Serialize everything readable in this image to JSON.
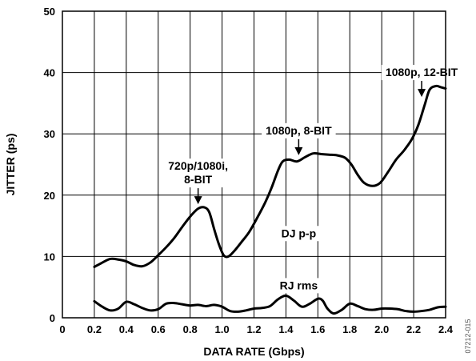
{
  "chart_data": {
    "type": "line",
    "title": "",
    "xlabel": "DATA RATE (Gbps)",
    "ylabel": "JITTER (ps)",
    "xlim": [
      0,
      2.4
    ],
    "ylim": [
      0,
      50
    ],
    "x_ticks": [
      "0",
      "0.2",
      "0.4",
      "0.6",
      "0.8",
      "1.0",
      "1.2",
      "1.4",
      "1.6",
      "1.8",
      "2.0",
      "2.2",
      "2.4"
    ],
    "y_ticks": [
      "0",
      "10",
      "20",
      "30",
      "40",
      "50"
    ],
    "grid": true,
    "series": [
      {
        "name": "DJ p-p",
        "color": "#000000",
        "points": [
          [
            0.2,
            8.3
          ],
          [
            0.25,
            9.0
          ],
          [
            0.3,
            9.6
          ],
          [
            0.35,
            9.5
          ],
          [
            0.4,
            9.2
          ],
          [
            0.45,
            8.6
          ],
          [
            0.5,
            8.4
          ],
          [
            0.55,
            9.0
          ],
          [
            0.6,
            10.2
          ],
          [
            0.65,
            11.5
          ],
          [
            0.7,
            13.0
          ],
          [
            0.75,
            14.8
          ],
          [
            0.8,
            16.5
          ],
          [
            0.85,
            17.8
          ],
          [
            0.89,
            18.0
          ],
          [
            0.92,
            17.2
          ],
          [
            0.95,
            14.5
          ],
          [
            0.98,
            12.0
          ],
          [
            1.01,
            10.2
          ],
          [
            1.04,
            10.0
          ],
          [
            1.08,
            11.0
          ],
          [
            1.12,
            12.3
          ],
          [
            1.17,
            14.0
          ],
          [
            1.22,
            16.3
          ],
          [
            1.27,
            18.8
          ],
          [
            1.31,
            21.2
          ],
          [
            1.35,
            24.0
          ],
          [
            1.38,
            25.5
          ],
          [
            1.42,
            25.8
          ],
          [
            1.47,
            25.5
          ],
          [
            1.52,
            26.2
          ],
          [
            1.57,
            26.8
          ],
          [
            1.62,
            26.7
          ],
          [
            1.67,
            26.6
          ],
          [
            1.72,
            26.5
          ],
          [
            1.77,
            26.1
          ],
          [
            1.81,
            25.0
          ],
          [
            1.85,
            23.3
          ],
          [
            1.89,
            22.0
          ],
          [
            1.94,
            21.5
          ],
          [
            1.99,
            22.0
          ],
          [
            2.04,
            23.8
          ],
          [
            2.09,
            25.8
          ],
          [
            2.14,
            27.3
          ],
          [
            2.19,
            29.2
          ],
          [
            2.23,
            31.5
          ],
          [
            2.27,
            34.8
          ],
          [
            2.3,
            37.2
          ],
          [
            2.34,
            37.8
          ],
          [
            2.37,
            37.6
          ],
          [
            2.4,
            37.4
          ]
        ]
      },
      {
        "name": "RJ rms",
        "color": "#000000",
        "points": [
          [
            0.2,
            2.7
          ],
          [
            0.25,
            1.8
          ],
          [
            0.3,
            1.2
          ],
          [
            0.35,
            1.5
          ],
          [
            0.4,
            2.6
          ],
          [
            0.45,
            2.2
          ],
          [
            0.5,
            1.6
          ],
          [
            0.55,
            1.2
          ],
          [
            0.6,
            1.4
          ],
          [
            0.65,
            2.3
          ],
          [
            0.7,
            2.4
          ],
          [
            0.75,
            2.2
          ],
          [
            0.8,
            2.0
          ],
          [
            0.85,
            2.1
          ],
          [
            0.9,
            1.9
          ],
          [
            0.95,
            2.1
          ],
          [
            1.0,
            1.8
          ],
          [
            1.05,
            1.1
          ],
          [
            1.1,
            1.0
          ],
          [
            1.15,
            1.2
          ],
          [
            1.2,
            1.5
          ],
          [
            1.25,
            1.6
          ],
          [
            1.3,
            1.9
          ],
          [
            1.35,
            3.0
          ],
          [
            1.4,
            3.6
          ],
          [
            1.45,
            2.8
          ],
          [
            1.5,
            1.8
          ],
          [
            1.55,
            2.3
          ],
          [
            1.6,
            3.1
          ],
          [
            1.63,
            2.8
          ],
          [
            1.66,
            1.5
          ],
          [
            1.7,
            0.7
          ],
          [
            1.75,
            1.3
          ],
          [
            1.8,
            2.3
          ],
          [
            1.85,
            1.9
          ],
          [
            1.9,
            1.4
          ],
          [
            1.95,
            1.3
          ],
          [
            2.0,
            1.5
          ],
          [
            2.05,
            1.5
          ],
          [
            2.1,
            1.4
          ],
          [
            2.15,
            1.1
          ],
          [
            2.2,
            1.0
          ],
          [
            2.25,
            1.1
          ],
          [
            2.3,
            1.3
          ],
          [
            2.35,
            1.7
          ],
          [
            2.4,
            1.8
          ]
        ]
      }
    ],
    "annotations": [
      {
        "lines": [
          "720p/1080i,",
          "8-BIT"
        ],
        "x": 0.85,
        "y": 18.0,
        "arrow": true
      },
      {
        "lines": [
          "1080p, 8-BIT"
        ],
        "x": 1.48,
        "y": 26.0,
        "arrow": true
      },
      {
        "lines": [
          "1080p, 12-BIT"
        ],
        "x": 2.25,
        "y": 35.5,
        "arrow": true
      },
      {
        "lines": [
          "DJ p-p"
        ],
        "x": 1.48,
        "y": 14.0,
        "arrow": false
      },
      {
        "lines": [
          "RJ rms"
        ],
        "x": 1.48,
        "y": 5.5,
        "arrow": false
      }
    ],
    "figure_id": "07212-015"
  }
}
